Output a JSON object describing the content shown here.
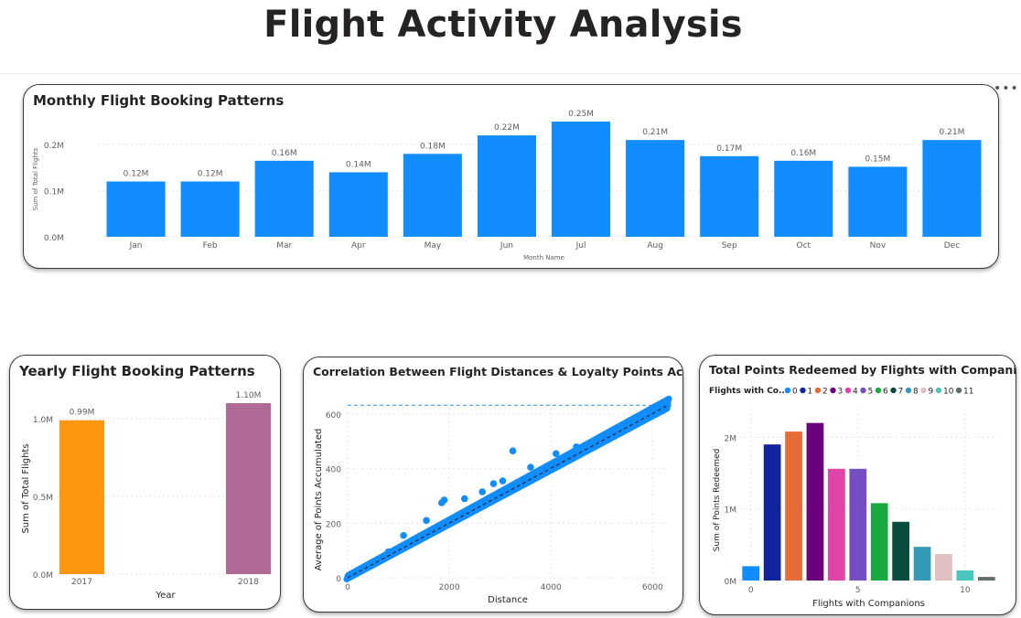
{
  "page": {
    "title": "Flight Activity Analysis"
  },
  "icons": {
    "more": "more-options-icon"
  },
  "chart_data": [
    {
      "id": "monthly",
      "type": "bar",
      "title": "Monthly Flight Booking Patterns",
      "xlabel": "Month Name",
      "ylabel": "Sum of Total Flights",
      "categories": [
        "Jan",
        "Feb",
        "Mar",
        "Apr",
        "May",
        "Jun",
        "Jul",
        "Aug",
        "Sep",
        "Oct",
        "Nov",
        "Dec"
      ],
      "values": [
        0.12,
        0.12,
        0.165,
        0.14,
        0.18,
        0.22,
        0.25,
        0.21,
        0.175,
        0.165,
        0.152,
        0.21
      ],
      "data_labels": [
        "0.12M",
        "0.12M",
        "0.16M",
        "0.14M",
        "0.18M",
        "0.22M",
        "0.25M",
        "0.21M",
        "0.17M",
        "0.16M",
        "0.15M",
        "0.21M"
      ],
      "y_ticks": [
        0,
        0.1,
        0.2
      ],
      "y_tick_labels": [
        "0.0M",
        "0.1M",
        "0.2M"
      ],
      "ylim": [
        0,
        0.25
      ],
      "color": "#118DFF",
      "grid": true
    },
    {
      "id": "yearly",
      "type": "bar",
      "title": "Yearly Flight Booking Patterns",
      "xlabel": "Year",
      "ylabel": "Sum of Total Flights",
      "categories": [
        "2017",
        "2018"
      ],
      "values": [
        0.99,
        1.1
      ],
      "data_labels": [
        "0.99M",
        "1.10M"
      ],
      "colors": [
        "#FF9610",
        "#B06A97"
      ],
      "y_ticks": [
        0,
        0.5,
        1.0
      ],
      "y_tick_labels": [
        "0.0M",
        "0.5M",
        "1.0M"
      ],
      "ylim": [
        0,
        1.1
      ],
      "grid": true
    },
    {
      "id": "scatter",
      "type": "scatter",
      "title": "Correlation Between Flight Distances & Loyalty Points Accumulated",
      "xlabel": "Distance",
      "ylabel": "Average of Points Accumulated",
      "x_ticks": [
        0,
        2000,
        4000,
        6000
      ],
      "y_ticks": [
        0,
        200,
        400,
        600
      ],
      "xlim": [
        0,
        6300
      ],
      "ylim": [
        0,
        640
      ],
      "reference_line_y": 632,
      "trend": {
        "x0": 0,
        "y0": 0,
        "x1": 6300,
        "y1": 632
      },
      "main_trend_x": [
        0,
        6300
      ],
      "main_trend_y": [
        0,
        632
      ],
      "outliers": [
        {
          "x": 3250,
          "y": 465
        },
        {
          "x": 2870,
          "y": 345
        },
        {
          "x": 3050,
          "y": 355
        },
        {
          "x": 2650,
          "y": 315
        },
        {
          "x": 1900,
          "y": 285
        },
        {
          "x": 1850,
          "y": 275
        },
        {
          "x": 1100,
          "y": 155
        },
        {
          "x": 1550,
          "y": 210
        },
        {
          "x": 3600,
          "y": 405
        },
        {
          "x": 4100,
          "y": 455
        },
        {
          "x": 4500,
          "y": 480
        },
        {
          "x": 2300,
          "y": 290
        },
        {
          "x": 800,
          "y": 95
        }
      ],
      "color": "#118DFF",
      "grid": true
    },
    {
      "id": "companions",
      "type": "bar",
      "title": "Total Points Redeemed by Flights with Companions",
      "legend_title": "Flights with Co...",
      "xlabel": "Flights with Companions",
      "ylabel": "Sum of Points Redeemed",
      "categories": [
        "0",
        "1",
        "2",
        "3",
        "4",
        "5",
        "6",
        "7",
        "8",
        "9",
        "10",
        "11"
      ],
      "values": [
        0.2,
        1.9,
        2.08,
        2.2,
        1.56,
        1.56,
        1.08,
        0.82,
        0.47,
        0.37,
        0.14,
        0.05
      ],
      "colors": [
        "#118DFF",
        "#12239E",
        "#E66C37",
        "#6B007B",
        "#E044A7",
        "#744EC2",
        "#1AAB40",
        "#0B4C40",
        "#3599B8",
        "#DFBFBF",
        "#4AC5BB",
        "#5F6B6D"
      ],
      "legend_labels": [
        "0",
        "1",
        "2",
        "3",
        "4",
        "5",
        "6",
        "7",
        "8",
        "9",
        "10",
        "11"
      ],
      "x_ticks": [
        0,
        5,
        10
      ],
      "y_ticks": [
        0,
        1,
        2
      ],
      "y_tick_labels": [
        "0M",
        "1M",
        "2M"
      ],
      "ylim": [
        0,
        2.4
      ],
      "grid": true
    }
  ]
}
